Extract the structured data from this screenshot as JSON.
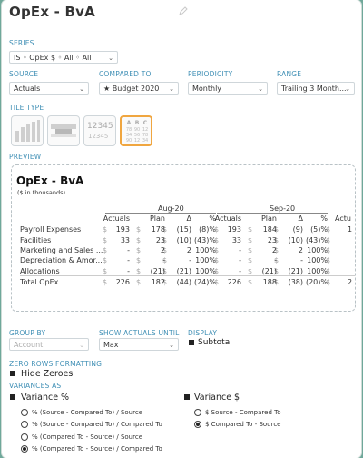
{
  "title": "OpEx - BvA",
  "labels": {
    "series": "SERIES",
    "source": "SOURCE",
    "compared_to": "COMPARED TO",
    "periodicity": "PERIODICITY",
    "range": "RANGE",
    "tile_type": "TILE TYPE",
    "preview": "PREVIEW",
    "group_by": "GROUP BY",
    "show_actuals_until": "SHOW ACTUALS UNTIL",
    "display": "DISPLAY",
    "zero_rows": "ZERO ROWS FORMATTING",
    "variances_as": "VARIANCES AS"
  },
  "controls": {
    "series_value": "IS ◦ OpEx $ ◦ All ◦ All",
    "source_value": "Actuals",
    "compared_to_value": "★ Budget 2020",
    "periodicity_value": "Monthly",
    "range_value": "Trailing 3 Month...",
    "group_by_value": "Account",
    "show_actuals_value": "Max",
    "subtotal_label": "Subtotal",
    "hide_zeroes_label": "Hide Zeroes",
    "variance_pct_label": "Variance %",
    "variance_dollar_label": "Variance $"
  },
  "tiles": {
    "numbers_top": "12345",
    "numbers_bottom": "12345",
    "table_headers": [
      "A",
      "B",
      "C"
    ],
    "table_rows": [
      [
        "78",
        "90",
        "12"
      ],
      [
        "34",
        "56",
        "78"
      ],
      [
        "90",
        "12",
        "34"
      ]
    ]
  },
  "preview": {
    "title": "OpEx - BvA",
    "subtitle": "($ in thousands)",
    "periods": [
      "Aug-20",
      "Sep-20"
    ],
    "columns": [
      "Actuals",
      "Plan",
      "Δ",
      "%"
    ],
    "partial_column": "Actu",
    "rows": [
      {
        "label": "Payroll Expenses",
        "a1": "193",
        "p1": "178",
        "d1": "(15)",
        "pc1": "(8)%",
        "a2": "193",
        "p2": "184",
        "d2": "(9)",
        "pc2": "(5)%",
        "tail": "1"
      },
      {
        "label": "Facilities",
        "a1": "33",
        "p1": "23",
        "d1": "(10)",
        "pc1": "(43)%",
        "a2": "33",
        "p2": "23",
        "d2": "(10)",
        "pc2": "(43)%",
        "tail": ""
      },
      {
        "label": "Marketing and Sales ...",
        "a1": "-",
        "p1": "2",
        "d1": "2",
        "pc1": "100%",
        "a2": "-",
        "p2": "2",
        "d2": "2",
        "pc2": "100%",
        "tail": ""
      },
      {
        "label": "Depreciation & Amor...",
        "a1": "-",
        "p1": "-",
        "d1": "-",
        "pc1": "100%",
        "a2": "-",
        "p2": "-",
        "d2": "-",
        "pc2": "100%",
        "tail": ""
      },
      {
        "label": "Allocations",
        "a1": "-",
        "p1": "(21)",
        "d1": "(21)",
        "pc1": "100%",
        "a2": "-",
        "p2": "(21)",
        "d2": "(21)",
        "pc2": "100%",
        "tail": ""
      },
      {
        "label": "Total OpEx",
        "a1": "226",
        "p1": "182",
        "d1": "(44)",
        "pc1": "(24)%",
        "a2": "226",
        "p2": "188",
        "d2": "(38)",
        "pc2": "(20)%",
        "tail": "2"
      }
    ]
  },
  "variance_pct_options": [
    {
      "label": "% (Source - Compared To) / Source",
      "selected": false
    },
    {
      "label": "% (Source - Compared To) / Compared To",
      "selected": false
    },
    {
      "label": "% (Compared To - Source) / Source",
      "selected": false
    },
    {
      "label": "% (Compared To - Source) / Compared To",
      "selected": true
    }
  ],
  "variance_dollar_options": [
    {
      "label": "$ Source - Compared To",
      "selected": false
    },
    {
      "label": "$ Compared To - Source",
      "selected": true
    }
  ],
  "colors": {
    "label_blue": "#3f8fb5",
    "selected_tile": "#f0a640",
    "background": "#6fa89a"
  }
}
